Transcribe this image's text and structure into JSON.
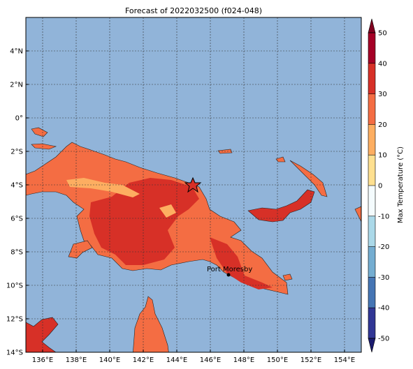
{
  "title": "Forecast of 2022032500 (f024-048)",
  "map": {
    "lon_range": [
      135,
      155
    ],
    "lat_range": [
      -14,
      6
    ],
    "lon_ticks": [
      {
        "value": 136,
        "label": "136°E"
      },
      {
        "value": 138,
        "label": "138°E"
      },
      {
        "value": 140,
        "label": "140°E"
      },
      {
        "value": 142,
        "label": "142°E"
      },
      {
        "value": 144,
        "label": "144°E"
      },
      {
        "value": 146,
        "label": "146°E"
      },
      {
        "value": 148,
        "label": "148°E"
      },
      {
        "value": 150,
        "label": "150°E"
      },
      {
        "value": 152,
        "label": "152°E"
      },
      {
        "value": 154,
        "label": "154°E"
      }
    ],
    "lat_ticks": [
      {
        "value": 4,
        "label": "4°N"
      },
      {
        "value": 2,
        "label": "2°N"
      },
      {
        "value": 0,
        "label": "0°"
      },
      {
        "value": -2,
        "label": "2°S"
      },
      {
        "value": -4,
        "label": "4°S"
      },
      {
        "value": -6,
        "label": "6°S"
      },
      {
        "value": -8,
        "label": "8°S"
      },
      {
        "value": -10,
        "label": "10°S"
      },
      {
        "value": -12,
        "label": "12°S"
      },
      {
        "value": -14,
        "label": "14°S"
      }
    ],
    "places": [
      {
        "name": "Port Moresby"
      }
    ]
  },
  "colorbar": {
    "label": "Max Temperature (°C)",
    "ticks": [
      50,
      40,
      30,
      20,
      10,
      0,
      -10,
      -20,
      -30,
      -40,
      -50
    ],
    "colors": [
      "#a50026",
      "#d73027",
      "#f46d43",
      "#fdae61",
      "#fee090",
      "#f4fbfd",
      "#abd9e9",
      "#74add1",
      "#4575b4",
      "#313695"
    ],
    "extend_top": "#800020",
    "extend_bottom": "#1a1a6e"
  }
}
